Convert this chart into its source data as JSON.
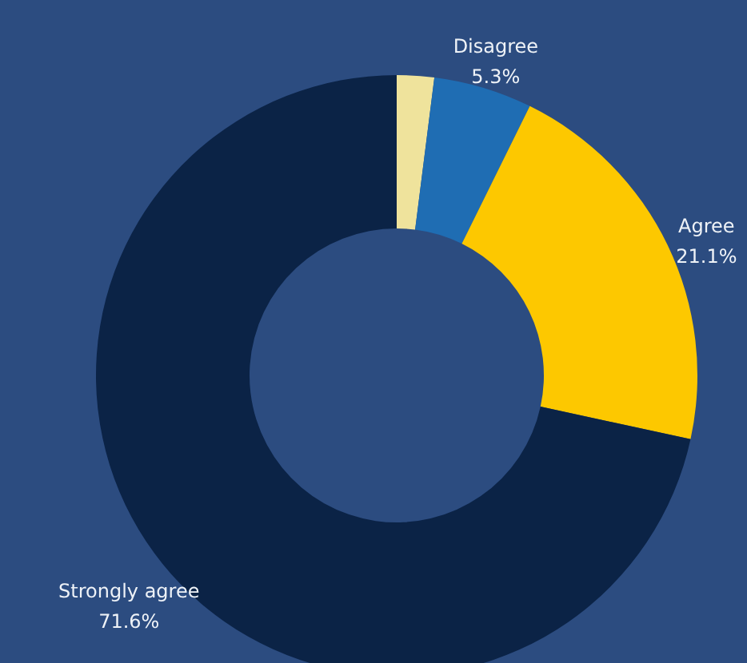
{
  "chart_data": {
    "type": "donut",
    "categories": [
      null,
      "Disagree",
      "Agree",
      "Strongly agree"
    ],
    "values": [
      2.0,
      5.3,
      21.1,
      71.6
    ],
    "value_labels": [
      null,
      "5.3%",
      "21.1%",
      "71.6%"
    ],
    "colors": [
      "#efe39c",
      "#1f6db3",
      "#fdc800",
      "#0b2346"
    ]
  }
}
